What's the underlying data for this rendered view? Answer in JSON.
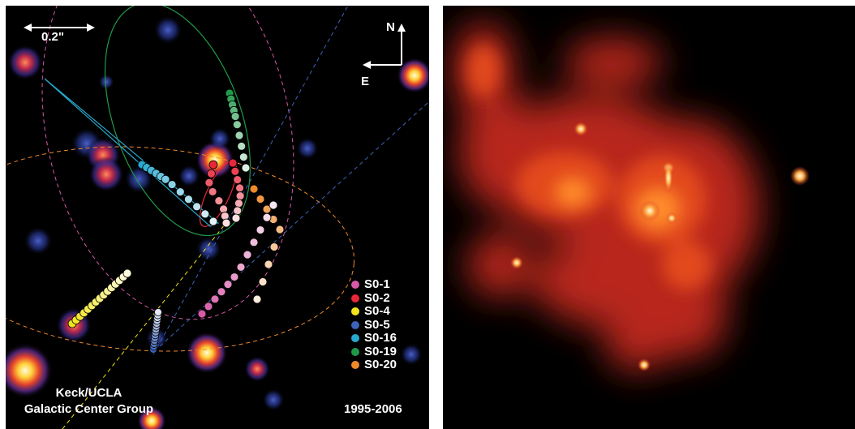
{
  "left": {
    "scale_label": "0.2\"",
    "compass": {
      "north": "N",
      "east": "E"
    },
    "credit_line1": "Keck/UCLA",
    "credit_line2": "Galactic Center Group",
    "date_range": "1995-2006",
    "legend": [
      {
        "label": "S0-1",
        "color": "#d65aa8"
      },
      {
        "label": "S0-2",
        "color": "#e8283a"
      },
      {
        "label": "S0-4",
        "color": "#f2e41c"
      },
      {
        "label": "S0-5",
        "color": "#3e63b8"
      },
      {
        "label": "S0-16",
        "color": "#27a9cf"
      },
      {
        "label": "S0-19",
        "color": "#1f9a4a"
      },
      {
        "label": "S0-20",
        "color": "#ef8a2c"
      }
    ]
  },
  "colors": {
    "left_background": "#000000",
    "right_background": "#000000",
    "glow_core": "#fff2b0",
    "glow_mid": "#ff6a1a",
    "glow_outer": "#d8321a"
  }
}
